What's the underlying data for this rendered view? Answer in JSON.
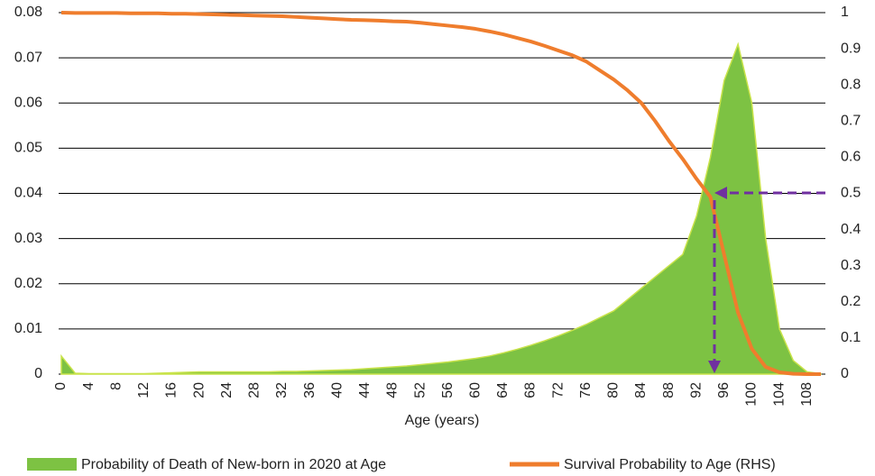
{
  "chart_data": {
    "type": "combo",
    "x_label": "Age (years)",
    "x": [
      0,
      2,
      4,
      6,
      8,
      10,
      12,
      14,
      16,
      18,
      20,
      22,
      24,
      26,
      28,
      30,
      32,
      34,
      36,
      38,
      40,
      42,
      44,
      46,
      48,
      50,
      52,
      54,
      56,
      58,
      60,
      62,
      64,
      66,
      68,
      70,
      72,
      74,
      76,
      78,
      80,
      82,
      84,
      86,
      88,
      90,
      92,
      94,
      96,
      98,
      100,
      102,
      104,
      106,
      108,
      110
    ],
    "xlim": [
      0,
      110
    ],
    "xticks": [
      0,
      4,
      8,
      12,
      16,
      20,
      24,
      28,
      32,
      36,
      40,
      44,
      48,
      52,
      56,
      60,
      64,
      68,
      72,
      76,
      80,
      84,
      88,
      92,
      96,
      100,
      104,
      108
    ],
    "ylim": [
      0,
      0.08
    ],
    "yticks": [
      0,
      0.01,
      0.02,
      0.03,
      0.04,
      0.05,
      0.06,
      0.07,
      0.08
    ],
    "y2lim": [
      0,
      1
    ],
    "y2ticks": [
      0,
      0.1,
      0.2,
      0.3,
      0.4,
      0.5,
      0.6,
      0.7,
      0.8,
      0.9,
      1
    ],
    "grid": true,
    "series": [
      {
        "name": "Probability of Death of New-born in 2020 at Age",
        "type": "area",
        "color": "#7dc243",
        "values": [
          0.004,
          0.0002,
          0.0001,
          0.0001,
          0.0001,
          0.0001,
          0.0001,
          0.0002,
          0.0003,
          0.0004,
          0.0005,
          0.0005,
          0.0005,
          0.0005,
          0.0005,
          0.0005,
          0.0006,
          0.0006,
          0.0007,
          0.0008,
          0.0009,
          0.001,
          0.0012,
          0.0014,
          0.0016,
          0.0018,
          0.0021,
          0.0024,
          0.0027,
          0.0031,
          0.0035,
          0.004,
          0.0047,
          0.0055,
          0.0064,
          0.0074,
          0.0085,
          0.0097,
          0.011,
          0.0125,
          0.014,
          0.0165,
          0.019,
          0.0215,
          0.024,
          0.0265,
          0.035,
          0.048,
          0.065,
          0.073,
          0.06,
          0.03,
          0.01,
          0.003,
          0.0005,
          0.0001
        ]
      },
      {
        "name": "Survival Probability to Age (RHS)",
        "type": "line",
        "axis": "y2",
        "color": "#ef7d2d",
        "values": [
          1,
          0.999,
          0.999,
          0.999,
          0.999,
          0.998,
          0.998,
          0.998,
          0.997,
          0.997,
          0.996,
          0.995,
          0.994,
          0.993,
          0.992,
          0.991,
          0.99,
          0.988,
          0.986,
          0.984,
          0.982,
          0.98,
          0.979,
          0.978,
          0.976,
          0.975,
          0.972,
          0.968,
          0.964,
          0.96,
          0.955,
          0.948,
          0.94,
          0.93,
          0.92,
          0.908,
          0.895,
          0.882,
          0.865,
          0.84,
          0.815,
          0.785,
          0.75,
          0.7,
          0.645,
          0.595,
          0.54,
          0.49,
          0.33,
          0.17,
          0.07,
          0.02,
          0.005,
          0.001,
          0,
          0
        ]
      }
    ],
    "legend": "bottom"
  }
}
